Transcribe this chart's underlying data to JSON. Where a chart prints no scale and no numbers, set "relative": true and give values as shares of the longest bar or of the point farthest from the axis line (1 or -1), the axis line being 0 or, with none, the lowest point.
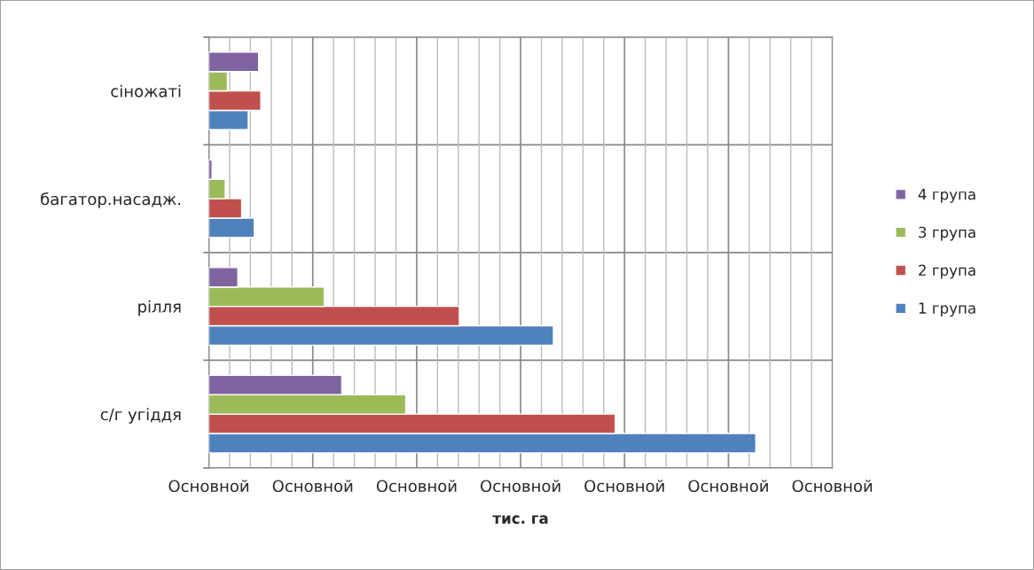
{
  "chart_data": {
    "type": "bar",
    "orientation": "horizontal",
    "relative": true,
    "categories": [
      "сіножаті",
      "багатор.насадж.",
      "рілля",
      "с/г угіддя"
    ],
    "series": [
      {
        "name": "1 група",
        "color": "#4f81bd",
        "values": [
          0.072,
          0.083,
          0.63,
          1
        ]
      },
      {
        "name": "2 група",
        "color": "#c0504d",
        "values": [
          0.095,
          0.06,
          0.458,
          0.743
        ]
      },
      {
        "name": "3 група",
        "color": "#9bbb59",
        "values": [
          0.034,
          0.03,
          0.211,
          0.36
        ]
      },
      {
        "name": "4 група",
        "color": "#8064a2",
        "values": [
          0.091,
          0.006,
          0.053,
          0.243
        ]
      }
    ],
    "xlim": [
      0,
      1.14
    ],
    "annotations": [
      "Основной",
      "Основной",
      "Основной",
      "Основной",
      "Основной",
      "Основной",
      "Основной"
    ],
    "xlabel": "тис. га",
    "grid": true,
    "legend": "right"
  }
}
